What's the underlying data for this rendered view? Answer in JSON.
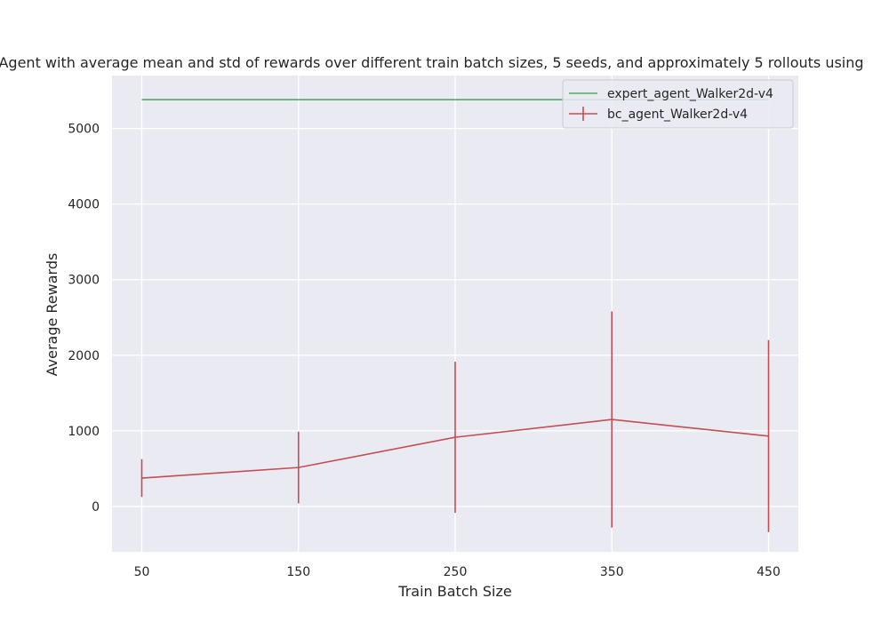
{
  "chart_data": {
    "type": "line",
    "title": "Agent with average mean and std of rewards over different train batch sizes, 5 seeds, and approximately 5 rollouts using",
    "xlabel": "Train Batch Size",
    "ylabel": "Average Rewards",
    "x": [
      50,
      150,
      250,
      350,
      450
    ],
    "xticks": [
      "50",
      "150",
      "250",
      "350",
      "450"
    ],
    "yticks": [
      "0",
      "1000",
      "2000",
      "3000",
      "4000",
      "5000"
    ],
    "xlim": [
      31,
      469
    ],
    "ylim": [
      -600,
      5700
    ],
    "grid": true,
    "legend_position": "top-right",
    "series": [
      {
        "name": "expert_agent_Walker2d-v4",
        "color": "#55a868",
        "values": [
          5380,
          5380,
          5380,
          5380,
          5380
        ],
        "error": null
      },
      {
        "name": "bc_agent_Walker2d-v4",
        "color": "#c44e52",
        "values": [
          375,
          515,
          915,
          1150,
          930
        ],
        "error": [
          250,
          475,
          1000,
          1430,
          1270
        ]
      }
    ],
    "style": {
      "plot_background": "#eaeaf2",
      "grid_color": "#ffffff"
    }
  }
}
